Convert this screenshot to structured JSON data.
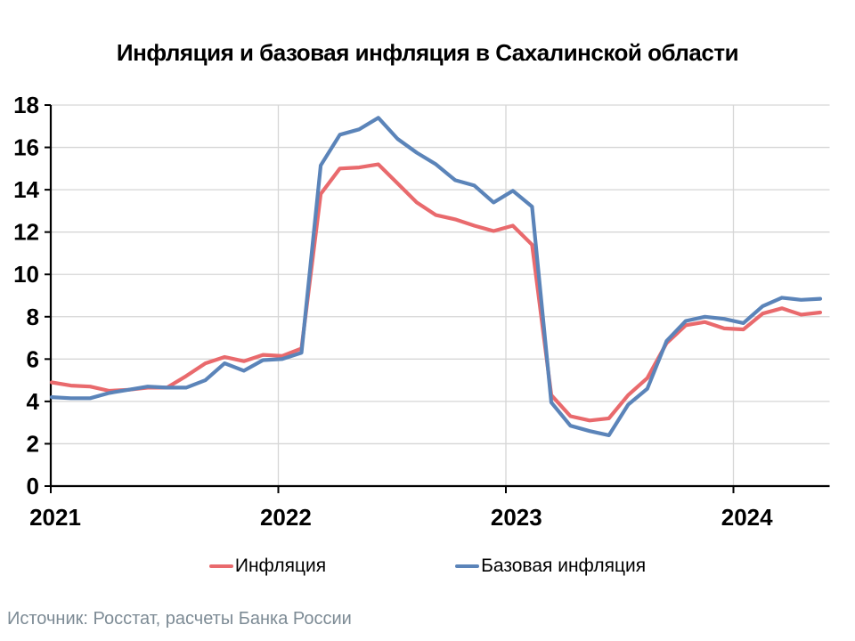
{
  "title": "Инфляция и базовая инфляция в Сахалинской области",
  "source": "Источник: Росстат, расчеты Банка России",
  "legend": {
    "items": [
      "Инфляция",
      "Базовая инфляция"
    ]
  },
  "chart_data": {
    "type": "line",
    "title": "Инфляция и базовая инфляция в Сахалинской области",
    "categories": [
      "2021-01",
      "2021-02",
      "2021-03",
      "2021-04",
      "2021-05",
      "2021-06",
      "2021-07",
      "2021-08",
      "2021-09",
      "2021-10",
      "2021-11",
      "2021-12",
      "2022-01",
      "2022-02",
      "2022-03",
      "2022-04",
      "2022-05",
      "2022-06",
      "2022-07",
      "2022-08",
      "2022-09",
      "2022-10",
      "2022-11",
      "2022-12",
      "2023-01",
      "2023-02",
      "2023-03",
      "2023-04",
      "2023-05",
      "2023-06",
      "2023-07",
      "2023-08",
      "2023-09",
      "2023-10",
      "2023-11",
      "2023-12",
      "2024-01",
      "2024-02",
      "2024-03",
      "2024-04",
      "2024-05"
    ],
    "series": [
      {
        "name": "Инфляция",
        "color": "#E96A6D",
        "values": [
          4.9,
          4.75,
          4.7,
          4.5,
          4.55,
          4.65,
          4.65,
          5.2,
          5.8,
          6.1,
          5.9,
          6.2,
          6.15,
          6.5,
          13.8,
          15.0,
          15.05,
          15.2,
          14.3,
          13.4,
          12.8,
          12.6,
          12.3,
          12.05,
          12.3,
          11.4,
          4.3,
          3.3,
          3.1,
          3.2,
          4.3,
          5.1,
          6.75,
          7.6,
          7.75,
          7.45,
          7.4,
          8.15,
          8.4,
          8.1,
          8.2
        ]
      },
      {
        "name": "Базовая инфляция",
        "color": "#5B84B9",
        "values": [
          4.2,
          4.15,
          4.15,
          4.4,
          4.55,
          4.7,
          4.65,
          4.65,
          5.0,
          5.8,
          5.45,
          5.95,
          6.0,
          6.3,
          15.15,
          16.6,
          16.85,
          17.4,
          16.4,
          15.75,
          15.2,
          14.45,
          14.2,
          13.4,
          13.95,
          13.2,
          3.95,
          2.85,
          2.6,
          2.4,
          3.85,
          4.6,
          6.85,
          7.8,
          8.0,
          7.9,
          7.7,
          8.5,
          8.9,
          8.8,
          8.85
        ]
      }
    ],
    "ylim": [
      0,
      18
    ],
    "ytick_step": 2,
    "ytick_labels": [
      "0",
      "2",
      "4",
      "6",
      "8",
      "10",
      "12",
      "14",
      "16",
      "18"
    ],
    "x_tick_labels": [
      "2021",
      "2022",
      "2023",
      "2024"
    ],
    "x_tick_indices": [
      0,
      12,
      24,
      36
    ],
    "grid": true,
    "grid_color": "#D6D6D6",
    "axis_color": "#000000",
    "legend_position": "bottom"
  }
}
